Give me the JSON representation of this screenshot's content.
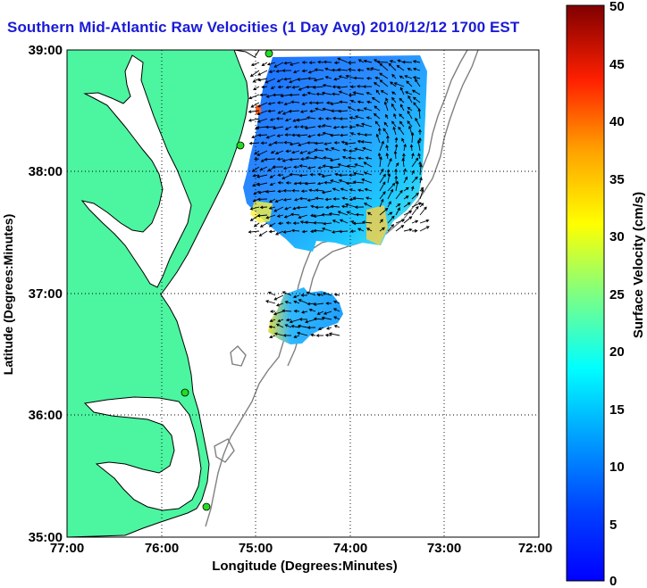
{
  "title": "Southern Mid-Atlantic Raw Velocities (1 Day Avg) 2010/12/12 1700 EST",
  "axes": {
    "xlabel": "Longitude (Degrees:Minutes)",
    "ylabel": "Latitude (Degrees:Minutes)",
    "xticks": [
      "77:00",
      "76:00",
      "75:00",
      "74:00",
      "73:00",
      "72:00"
    ],
    "yticks": [
      "39:00",
      "38:00",
      "37:00",
      "36:00",
      "35:00"
    ]
  },
  "colorbar": {
    "label": "Surface Velocity (cm/s)",
    "ticks": [
      "0",
      "5",
      "10",
      "15",
      "20",
      "25",
      "30",
      "35",
      "40",
      "45",
      "50"
    ],
    "min": 0,
    "max": 50,
    "colormap": "jet"
  },
  "map": {
    "lon_range": [
      -77,
      -72
    ],
    "lat_range": [
      35,
      39
    ],
    "land_color": "#4cf5a0",
    "water_color": "#ffffff",
    "bathymetry_color": "#808080",
    "station_color": "#22dd22",
    "grid": "dotted",
    "velocity_field": "arrows over colored speed patches"
  }
}
